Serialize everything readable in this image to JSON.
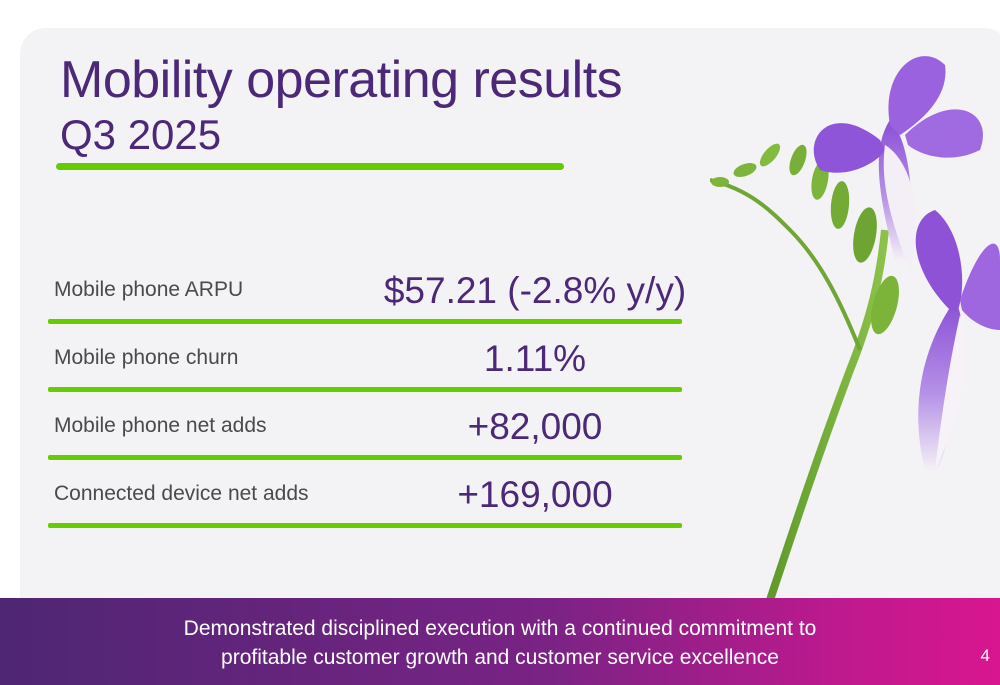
{
  "slide": {
    "title": "Mobility operating results",
    "subtitle": "Q3 2025",
    "metrics": [
      {
        "label": "Mobile phone ARPU",
        "value": "$57.21 (-2.8% y/y)"
      },
      {
        "label": "Mobile phone churn",
        "value": "1.11%"
      },
      {
        "label": "Mobile phone net adds",
        "value": "+82,000"
      },
      {
        "label": "Connected device net adds",
        "value": "+169,000"
      }
    ],
    "footer": {
      "line1": "Demonstrated disciplined execution with a continued commitment to",
      "line2": "profitable customer growth and customer service excellence"
    },
    "page_number": "4"
  },
  "colors": {
    "accent_purple": "#4b2878",
    "accent_green": "#66cc00",
    "banner_start": "#4e2673",
    "banner_end": "#d8168f"
  },
  "icons": {
    "flower": "freesia-flower-illustration"
  }
}
